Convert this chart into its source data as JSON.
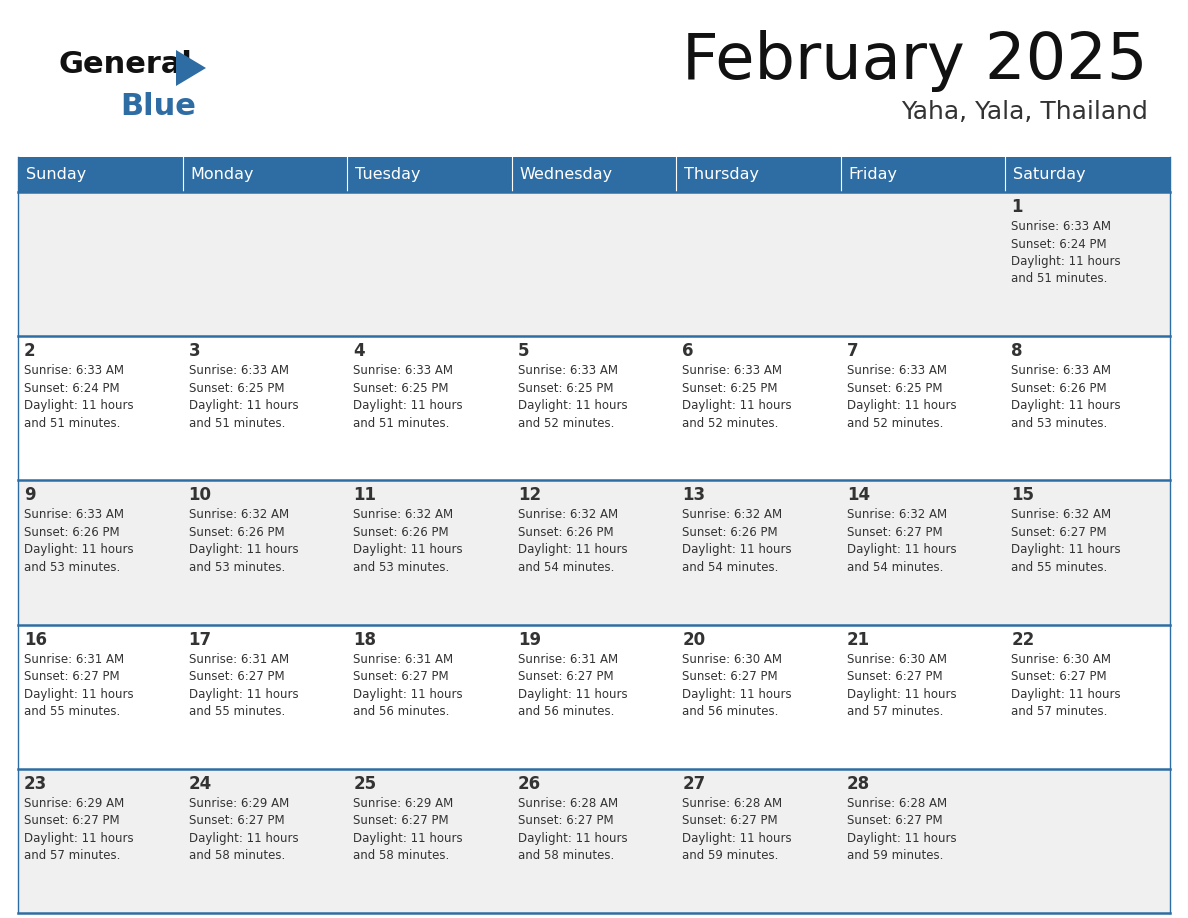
{
  "title": "February 2025",
  "subtitle": "Yaha, Yala, Thailand",
  "header_color": "#2E6DA4",
  "header_text_color": "#FFFFFF",
  "days_of_week": [
    "Sunday",
    "Monday",
    "Tuesday",
    "Wednesday",
    "Thursday",
    "Friday",
    "Saturday"
  ],
  "bg_color": "#FFFFFF",
  "cell_bg_even": "#F0F0F0",
  "cell_bg_odd": "#FFFFFF",
  "row_line_color": "#2E6DA4",
  "text_color": "#333333",
  "calendar_data": [
    [
      null,
      null,
      null,
      null,
      null,
      null,
      {
        "day": 1,
        "sunrise": "6:33 AM",
        "sunset": "6:24 PM",
        "daylight": "11 hours and 51 minutes."
      }
    ],
    [
      {
        "day": 2,
        "sunrise": "6:33 AM",
        "sunset": "6:24 PM",
        "daylight": "11 hours and 51 minutes."
      },
      {
        "day": 3,
        "sunrise": "6:33 AM",
        "sunset": "6:25 PM",
        "daylight": "11 hours and 51 minutes."
      },
      {
        "day": 4,
        "sunrise": "6:33 AM",
        "sunset": "6:25 PM",
        "daylight": "11 hours and 51 minutes."
      },
      {
        "day": 5,
        "sunrise": "6:33 AM",
        "sunset": "6:25 PM",
        "daylight": "11 hours and 52 minutes."
      },
      {
        "day": 6,
        "sunrise": "6:33 AM",
        "sunset": "6:25 PM",
        "daylight": "11 hours and 52 minutes."
      },
      {
        "day": 7,
        "sunrise": "6:33 AM",
        "sunset": "6:25 PM",
        "daylight": "11 hours and 52 minutes."
      },
      {
        "day": 8,
        "sunrise": "6:33 AM",
        "sunset": "6:26 PM",
        "daylight": "11 hours and 53 minutes."
      }
    ],
    [
      {
        "day": 9,
        "sunrise": "6:33 AM",
        "sunset": "6:26 PM",
        "daylight": "11 hours and 53 minutes."
      },
      {
        "day": 10,
        "sunrise": "6:32 AM",
        "sunset": "6:26 PM",
        "daylight": "11 hours and 53 minutes."
      },
      {
        "day": 11,
        "sunrise": "6:32 AM",
        "sunset": "6:26 PM",
        "daylight": "11 hours and 53 minutes."
      },
      {
        "day": 12,
        "sunrise": "6:32 AM",
        "sunset": "6:26 PM",
        "daylight": "11 hours and 54 minutes."
      },
      {
        "day": 13,
        "sunrise": "6:32 AM",
        "sunset": "6:26 PM",
        "daylight": "11 hours and 54 minutes."
      },
      {
        "day": 14,
        "sunrise": "6:32 AM",
        "sunset": "6:27 PM",
        "daylight": "11 hours and 54 minutes."
      },
      {
        "day": 15,
        "sunrise": "6:32 AM",
        "sunset": "6:27 PM",
        "daylight": "11 hours and 55 minutes."
      }
    ],
    [
      {
        "day": 16,
        "sunrise": "6:31 AM",
        "sunset": "6:27 PM",
        "daylight": "11 hours and 55 minutes."
      },
      {
        "day": 17,
        "sunrise": "6:31 AM",
        "sunset": "6:27 PM",
        "daylight": "11 hours and 55 minutes."
      },
      {
        "day": 18,
        "sunrise": "6:31 AM",
        "sunset": "6:27 PM",
        "daylight": "11 hours and 56 minutes."
      },
      {
        "day": 19,
        "sunrise": "6:31 AM",
        "sunset": "6:27 PM",
        "daylight": "11 hours and 56 minutes."
      },
      {
        "day": 20,
        "sunrise": "6:30 AM",
        "sunset": "6:27 PM",
        "daylight": "11 hours and 56 minutes."
      },
      {
        "day": 21,
        "sunrise": "6:30 AM",
        "sunset": "6:27 PM",
        "daylight": "11 hours and 57 minutes."
      },
      {
        "day": 22,
        "sunrise": "6:30 AM",
        "sunset": "6:27 PM",
        "daylight": "11 hours and 57 minutes."
      }
    ],
    [
      {
        "day": 23,
        "sunrise": "6:29 AM",
        "sunset": "6:27 PM",
        "daylight": "11 hours and 57 minutes."
      },
      {
        "day": 24,
        "sunrise": "6:29 AM",
        "sunset": "6:27 PM",
        "daylight": "11 hours and 58 minutes."
      },
      {
        "day": 25,
        "sunrise": "6:29 AM",
        "sunset": "6:27 PM",
        "daylight": "11 hours and 58 minutes."
      },
      {
        "day": 26,
        "sunrise": "6:28 AM",
        "sunset": "6:27 PM",
        "daylight": "11 hours and 58 minutes."
      },
      {
        "day": 27,
        "sunrise": "6:28 AM",
        "sunset": "6:27 PM",
        "daylight": "11 hours and 59 minutes."
      },
      {
        "day": 28,
        "sunrise": "6:28 AM",
        "sunset": "6:27 PM",
        "daylight": "11 hours and 59 minutes."
      },
      null
    ]
  ]
}
